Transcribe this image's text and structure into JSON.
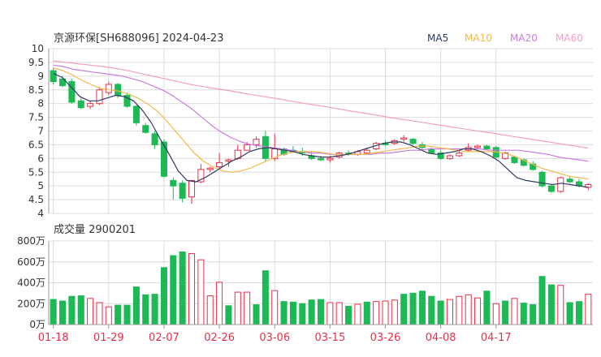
{
  "colors": {
    "up": "#e8304a",
    "down": "#1db954",
    "grid": "#dcdcdc",
    "axis_text": "#333333",
    "date_text": "#e8304a",
    "ma5": "#2f3a5e",
    "ma10": "#f2b84b",
    "ma20": "#c77ee0",
    "ma60": "#f0a0c8"
  },
  "chart_data": [
    {
      "type": "candlestick",
      "title": "京源环保[SH688096] 2024-04-23",
      "legend": [
        "MA5",
        "MA10",
        "MA20",
        "MA60"
      ],
      "legend_position": "top-right",
      "ylim": [
        4,
        10
      ],
      "yticks": [
        "4",
        "4.5",
        "5",
        "5.5",
        "6",
        "6.5",
        "7",
        "7.5",
        "8",
        "8.5",
        "9",
        "9.5",
        "10"
      ],
      "grid": true,
      "xticks": [
        {
          "index": 0,
          "label": "01-18"
        },
        {
          "index": 6,
          "label": "01-29"
        },
        {
          "index": 12,
          "label": "02-07"
        },
        {
          "index": 18,
          "label": "02-26"
        },
        {
          "index": 24,
          "label": "03-06"
        },
        {
          "index": 30,
          "label": "03-15"
        },
        {
          "index": 36,
          "label": "03-26"
        },
        {
          "index": 42,
          "label": "04-08"
        },
        {
          "index": 48,
          "label": "04-17"
        }
      ],
      "ohlc": [
        [
          9.2,
          9.3,
          8.7,
          8.8
        ],
        [
          8.9,
          9.0,
          8.6,
          8.65
        ],
        [
          8.8,
          8.9,
          8.0,
          8.05
        ],
        [
          8.1,
          8.2,
          7.8,
          7.85
        ],
        [
          7.9,
          8.1,
          7.8,
          8.0
        ],
        [
          8.0,
          8.6,
          7.95,
          8.5
        ],
        [
          8.4,
          8.8,
          8.3,
          8.7
        ],
        [
          8.7,
          8.75,
          8.2,
          8.3
        ],
        [
          8.3,
          8.4,
          7.85,
          7.9
        ],
        [
          7.9,
          7.95,
          7.2,
          7.3
        ],
        [
          7.2,
          7.3,
          6.9,
          6.95
        ],
        [
          6.9,
          7.0,
          6.35,
          6.5
        ],
        [
          6.6,
          6.7,
          5.3,
          5.35
        ],
        [
          5.2,
          5.3,
          4.5,
          5.0
        ],
        [
          5.1,
          5.2,
          4.4,
          4.55
        ],
        [
          4.6,
          5.2,
          4.35,
          5.2
        ],
        [
          5.15,
          5.8,
          5.1,
          5.6
        ],
        [
          5.6,
          5.7,
          5.5,
          5.65
        ],
        [
          5.7,
          6.2,
          5.6,
          5.85
        ],
        [
          5.9,
          6.0,
          5.7,
          5.95
        ]
      ],
      "ohlc_more": [
        [
          6.0,
          6.5,
          5.95,
          6.3
        ],
        [
          6.3,
          6.6,
          6.3,
          6.5
        ],
        [
          6.5,
          6.8,
          6.4,
          6.7
        ],
        [
          6.8,
          7.0,
          5.9,
          6.0
        ],
        [
          6.0,
          6.9,
          5.9,
          6.35
        ],
        [
          6.35,
          6.4,
          6.1,
          6.15
        ],
        [
          6.3,
          6.45,
          6.2,
          6.25
        ],
        [
          6.25,
          6.4,
          6.1,
          6.2
        ],
        [
          6.1,
          6.25,
          5.95,
          6.0
        ],
        [
          6.0,
          6.1,
          5.9,
          5.95
        ],
        [
          5.95,
          6.1,
          5.85,
          6.0
        ],
        [
          6.05,
          6.25,
          6.0,
          6.2
        ],
        [
          6.2,
          6.3,
          6.1,
          6.15
        ],
        [
          6.15,
          6.3,
          6.1,
          6.25
        ],
        [
          6.2,
          6.4,
          6.15,
          6.3
        ],
        [
          6.35,
          6.6,
          6.3,
          6.55
        ],
        [
          6.55,
          6.65,
          6.45,
          6.5
        ],
        [
          6.55,
          6.7,
          6.5,
          6.65
        ],
        [
          6.7,
          6.85,
          6.6,
          6.75
        ],
        [
          6.7,
          6.75,
          6.5,
          6.55
        ],
        [
          6.5,
          6.6,
          6.3,
          6.4
        ],
        [
          6.35,
          6.4,
          6.15,
          6.2
        ],
        [
          6.2,
          6.3,
          5.95,
          6.0
        ],
        [
          6.0,
          6.15,
          5.95,
          6.1
        ],
        [
          6.1,
          6.3,
          6.05,
          6.2
        ],
        [
          6.3,
          6.55,
          6.25,
          6.4
        ],
        [
          6.4,
          6.5,
          6.35,
          6.45
        ]
      ],
      "ohlc_tail": [
        [
          6.45,
          6.5,
          6.3,
          6.35
        ],
        [
          6.4,
          6.45,
          6.0,
          6.05
        ],
        [
          6.0,
          6.25,
          5.95,
          6.2
        ],
        [
          6.05,
          6.1,
          5.8,
          5.85
        ],
        [
          5.95,
          6.0,
          5.7,
          5.75
        ],
        [
          5.8,
          5.9,
          5.55,
          5.6
        ],
        [
          5.5,
          5.55,
          4.95,
          5.0
        ],
        [
          5.0,
          5.05,
          4.75,
          4.8
        ],
        [
          4.8,
          5.35,
          4.75,
          5.3
        ],
        [
          5.25,
          5.35,
          5.1,
          5.15
        ],
        [
          5.15,
          5.25,
          4.95,
          5.0
        ],
        [
          4.95,
          5.1,
          4.85,
          5.05
        ]
      ],
      "ma5": [
        9.1,
        8.95,
        8.6,
        8.25,
        8.1,
        8.1,
        8.2,
        8.3,
        8.25,
        8.1,
        7.75,
        7.3,
        6.7,
        6.15,
        5.55,
        5.2,
        5.15,
        5.3,
        5.5,
        5.7,
        5.9,
        6.05,
        6.25,
        6.35,
        6.4,
        6.35,
        6.3,
        6.25,
        6.15,
        6.1,
        6.05,
        6.05,
        6.1,
        6.15,
        6.25,
        6.35,
        6.45,
        6.55,
        6.6,
        6.6,
        6.5,
        6.35,
        6.2,
        6.15,
        6.2,
        6.25,
        6.35,
        6.35,
        6.25,
        6.1,
        5.9,
        5.6,
        5.3,
        5.2,
        5.15,
        5.1,
        5.05,
        5.1,
        5.05,
        5.0,
        4.95
      ],
      "ma10": [
        9.3,
        9.2,
        9.05,
        8.85,
        8.7,
        8.55,
        8.5,
        8.45,
        8.35,
        8.2,
        8.0,
        7.75,
        7.4,
        7.0,
        6.6,
        6.2,
        5.9,
        5.7,
        5.55,
        5.5,
        5.55,
        5.65,
        5.8,
        5.95,
        6.1,
        6.2,
        6.25,
        6.25,
        6.25,
        6.2,
        6.15,
        6.15,
        6.15,
        6.15,
        6.2,
        6.25,
        6.3,
        6.35,
        6.4,
        6.45,
        6.45,
        6.4,
        6.35,
        6.3,
        6.25,
        6.25,
        6.25,
        6.25,
        6.2,
        6.1,
        5.95,
        5.8,
        5.65,
        5.55,
        5.45,
        5.35,
        5.3,
        5.25
      ],
      "ma20": [
        9.4,
        9.35,
        9.25,
        9.2,
        9.15,
        9.1,
        9.05,
        9.0,
        8.9,
        8.8,
        8.65,
        8.5,
        8.3,
        8.05,
        7.8,
        7.5,
        7.2,
        6.95,
        6.75,
        6.6,
        6.5,
        6.45,
        6.4,
        6.35,
        6.3,
        6.25,
        6.2,
        6.2,
        6.15,
        6.15,
        6.15,
        6.15,
        6.15,
        6.2,
        6.2,
        6.25,
        6.3,
        6.3,
        6.35,
        6.35,
        6.35,
        6.35,
        6.35,
        6.35,
        6.3,
        6.3,
        6.3,
        6.3,
        6.25,
        6.2,
        6.15,
        6.05,
        6.0,
        5.95,
        5.9
      ],
      "ma60": [
        9.55,
        9.5,
        9.45,
        9.4,
        9.35,
        9.28,
        9.2,
        9.1,
        9.0,
        8.9,
        8.8,
        8.7,
        8.62,
        8.55,
        8.48,
        8.4,
        8.32,
        8.25,
        8.18,
        8.1,
        8.02,
        7.95,
        7.88,
        7.8,
        7.72,
        7.65,
        7.58,
        7.5,
        7.43,
        7.36,
        7.29,
        7.22,
        7.15,
        7.08,
        7.01,
        6.94,
        6.87,
        6.8,
        6.73,
        6.66,
        6.59,
        6.52,
        6.45,
        6.38
      ]
    },
    {
      "type": "bar",
      "title": "成交量 2900201",
      "ylim": [
        0,
        800
      ],
      "yticks": [
        "0万",
        "200万",
        "400万",
        "600万",
        "800万"
      ],
      "grid": true,
      "values": [
        240,
        225,
        270,
        275,
        250,
        210,
        170,
        185,
        185,
        360,
        285,
        290,
        545,
        660,
        695,
        680,
        620,
        275,
        405,
        180,
        310,
        310,
        190,
        515,
        325,
        220,
        215,
        200,
        235,
        240,
        210,
        210,
        175,
        195,
        215,
        220,
        225,
        235,
        290,
        300,
        320,
        270,
        225,
        240,
        270,
        285,
        255,
        320,
        200,
        225,
        250,
        205,
        190,
        460,
        380,
        375,
        210,
        220,
        290
      ],
      "up_flags": [
        0,
        0,
        0,
        0,
        1,
        1,
        1,
        0,
        0,
        0,
        0,
        0,
        0,
        0,
        0,
        1,
        1,
        1,
        1,
        0,
        1,
        1,
        0,
        0,
        1,
        0,
        0,
        0,
        0,
        0,
        1,
        1,
        0,
        1,
        0,
        1,
        1,
        1,
        0,
        0,
        0,
        0,
        0,
        1,
        1,
        1,
        1,
        0,
        1,
        0,
        1,
        0,
        0,
        0,
        0,
        1,
        0,
        0,
        1
      ]
    }
  ]
}
